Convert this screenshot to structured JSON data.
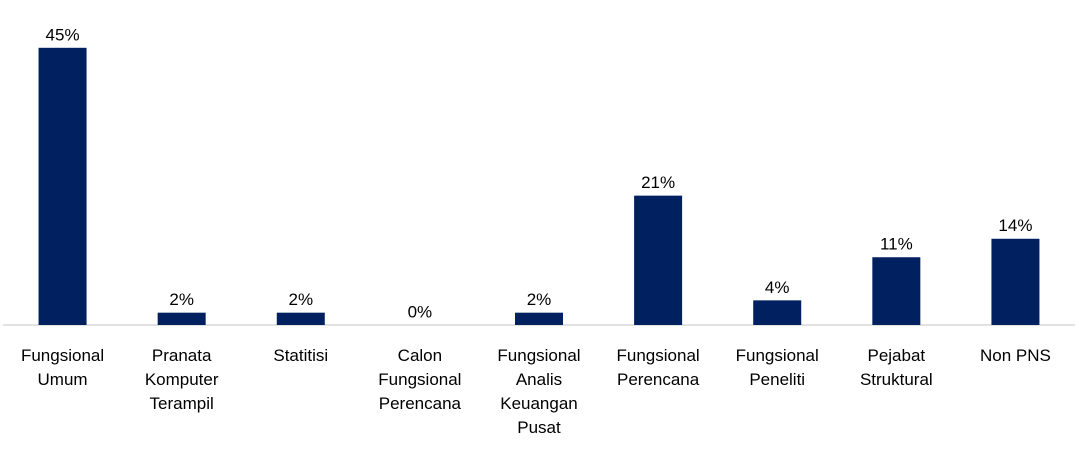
{
  "chart_data": {
    "type": "bar",
    "categories": [
      "Fungsional\nUmum",
      "Pranata\nKomputer\nTerampil",
      "Statitisi",
      "Calon\nFungsional\nPerencana",
      "Fungsional\nAnalis\nKeuangan\nPusat",
      "Fungsional\nPerencana",
      "Fungsional\nPeneliti",
      "Pejabat\nStruktural",
      "Non PNS"
    ],
    "values": [
      45,
      2,
      2,
      0,
      2,
      21,
      4,
      11,
      14
    ],
    "value_labels": [
      "45%",
      "2%",
      "2%",
      "0%",
      "2%",
      "21%",
      "4%",
      "11%",
      "14%"
    ],
    "color": "#002060"
  }
}
